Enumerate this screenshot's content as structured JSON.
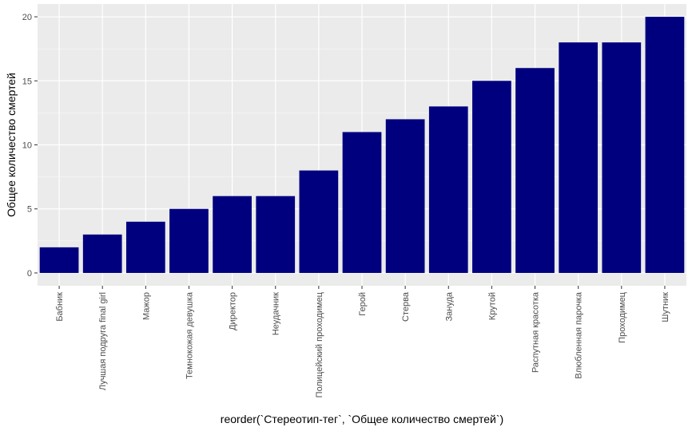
{
  "chart_data": {
    "type": "bar",
    "xlabel": "reorder(`Стереотип-тег`, `Общее количество смертей`)",
    "ylabel": "Общее количество смертей",
    "categories": [
      "Бабник",
      "Лучшая подруга final girl",
      "Мажор",
      "Темнокожая девушка",
      "Директор",
      "Неудачник",
      "Полицейский проходимец",
      "Герой",
      "Стерва",
      "Зануда",
      "Крутой",
      "Распутная красотка",
      "Влюбленная парочка",
      "Проходимец",
      "Шутник"
    ],
    "values": [
      2,
      3,
      4,
      5,
      6,
      6,
      8,
      11,
      12,
      13,
      15,
      16,
      18,
      18,
      20
    ],
    "ylim": [
      -1,
      21
    ],
    "yticks": [
      0,
      5,
      10,
      15,
      20
    ],
    "grid": true,
    "legend": "none",
    "colors": {
      "bar": "#00007f",
      "panel": "#ebebeb",
      "grid_major": "#ffffff",
      "tick_text": "#4d4d4d",
      "axis_title": "#000000"
    }
  }
}
